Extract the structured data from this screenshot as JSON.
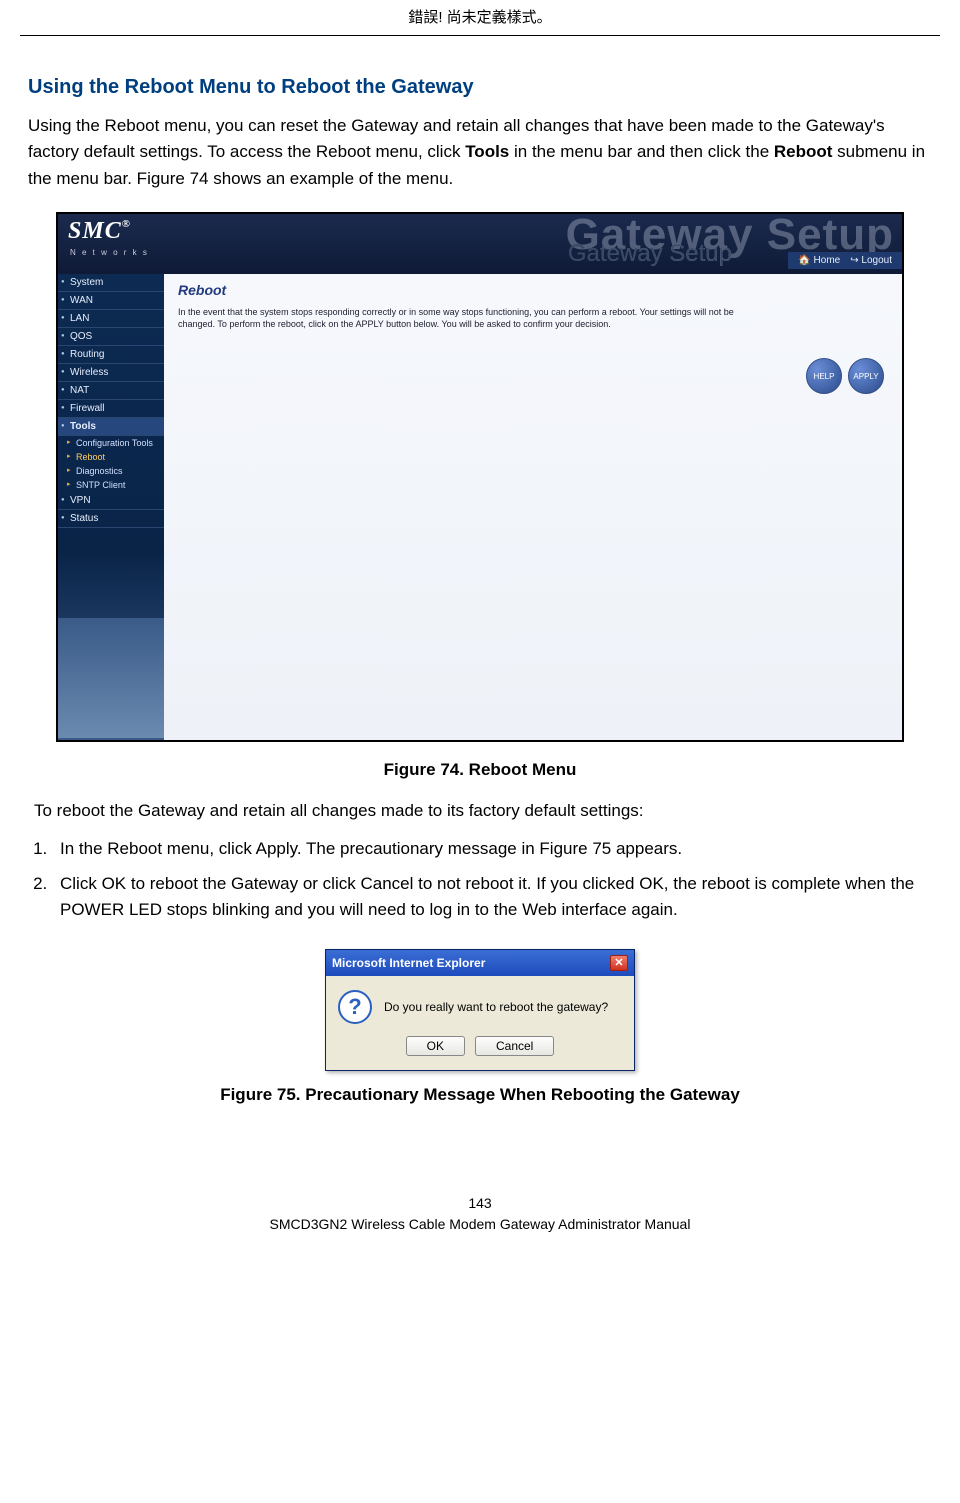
{
  "header": {
    "text": "錯誤! 尚未定義樣式。"
  },
  "section": {
    "heading": "Using the Reboot Menu to Reboot the Gateway",
    "para_pre": "Using the Reboot menu, you can reset the Gateway and retain all changes that have been made to the Gateway's factory default settings. To access the Reboot menu, click ",
    "para_bold1": "Tools",
    "para_mid": " in the menu bar and then click the ",
    "para_bold2": "Reboot",
    "para_post": " submenu in the menu bar. Figure 74 shows an example of the menu."
  },
  "screenshot": {
    "logo": "SMC",
    "logo_reg": "®",
    "logo_sub": "N e t w o r k s",
    "watermark": "Gateway Setup",
    "subtitle": "Gateway Setup",
    "home": "Home",
    "logout": "Logout",
    "sidebar": {
      "items": [
        "System",
        "WAN",
        "LAN",
        "QOS",
        "Routing",
        "Wireless",
        "NAT",
        "Firewall",
        "Tools"
      ],
      "subitems": [
        "Configuration Tools",
        "Reboot",
        "Diagnostics",
        "SNTP Client"
      ],
      "tail": [
        "VPN",
        "Status"
      ]
    },
    "main": {
      "title": "Reboot",
      "desc": "In the event that the system stops responding correctly or in some way stops functioning, you can perform a reboot. Your settings will not be changed. To perform the reboot, click on the APPLY button below. You will be asked to confirm your decision.",
      "btn_help": "HELP",
      "btn_apply": "APPLY"
    }
  },
  "fig74_caption": "Figure 74. Reboot Menu",
  "list_intro": "To reboot the Gateway and retain all changes made to its factory default settings:",
  "steps": {
    "s1_pre": "In the Reboot menu, click ",
    "s1_b1": "Apply",
    "s1_post": ". The precautionary message in Figure 75 appears.",
    "s2_pre": "Click ",
    "s2_b1": "OK",
    "s2_mid1": " to reboot the Gateway or click ",
    "s2_b2": "Cancel",
    "s2_mid2": " to not reboot it. If you clicked ",
    "s2_b3": "OK",
    "s2_mid3": ", the reboot is complete when the ",
    "s2_b4": "POWER",
    "s2_post": " LED stops blinking and you will need to log in to the Web interface again."
  },
  "dialog": {
    "title": "Microsoft Internet Explorer",
    "msg": "Do you really want to reboot the gateway?",
    "ok": "OK",
    "cancel": "Cancel"
  },
  "fig75_caption": "Figure 75. Precautionary Message When Rebooting the Gateway",
  "footer": {
    "pagenum": "143",
    "title": "SMCD3GN2 Wireless Cable Modem Gateway Administrator Manual"
  },
  "colors": {
    "heading": "#003f7f",
    "sidebar_bg": "#0c2a52",
    "dialog_title_bg": "#1e4bbd"
  }
}
